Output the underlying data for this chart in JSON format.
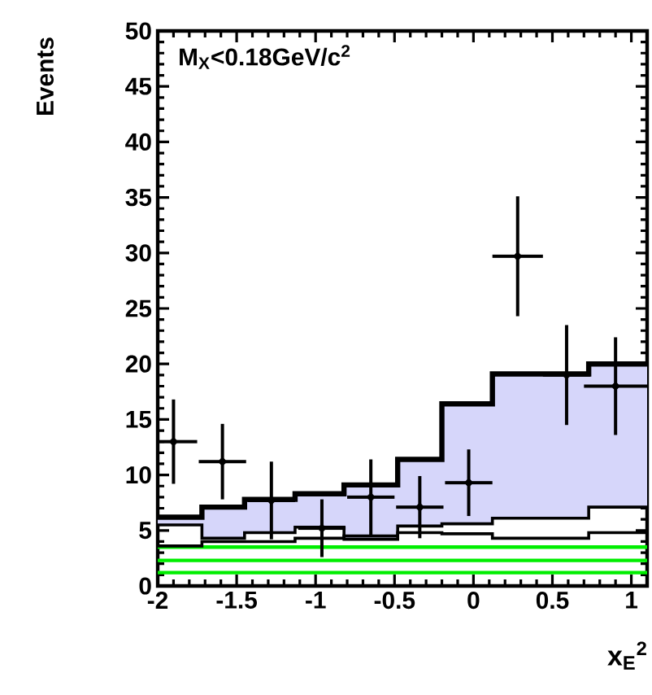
{
  "chart_data": {
    "type": "step",
    "ylabel": "Events",
    "xlabel": "x$_{E}$$^{2}$",
    "annotations": [
      "M$_{X}$<0.18GeV/c$^{2}$"
    ],
    "xlim": [
      -2,
      1.1
    ],
    "xticks": [
      -2,
      -1.5,
      -1,
      -0.5,
      0,
      0.5,
      1
    ],
    "ylim": [
      0,
      50
    ],
    "yticks": [
      0,
      5,
      10,
      15,
      20,
      25,
      30,
      35,
      40,
      45,
      50
    ],
    "grid": false,
    "ref_lines": [
      {
        "axis": "y",
        "value": 3.5,
        "color": "#00ee00"
      },
      {
        "axis": "y",
        "value": 2.3,
        "color": "#00ee00"
      },
      {
        "axis": "y",
        "value": 1.2,
        "color": "#00ee00"
      }
    ],
    "series": [
      {
        "color": "#000000",
        "x": [
          -2,
          -1.72,
          -1.45,
          -1.13,
          -0.82,
          -0.48,
          -0.2,
          0.12,
          0.43,
          0.73,
          1.1
        ],
        "values": [
          6.2,
          7.1,
          7.8,
          8.3,
          9.1,
          11.4,
          16.4,
          19.1,
          19.1,
          20,
          20
        ],
        "lower": [
          5.5,
          4.3,
          4.8,
          5.3,
          4.2,
          5.4,
          5.6,
          6.1,
          6.1,
          7.1,
          7.1
        ],
        "upper": [
          6.2,
          7.1,
          7.8,
          8.3,
          9.1,
          11.4,
          16.4,
          19.1,
          19.1,
          20,
          20
        ]
      },
      {
        "color": "#000000",
        "x": [
          -2,
          -1.72,
          -1.45,
          -1.13,
          -0.82,
          -0.48,
          -0.2,
          0.12,
          0.43,
          0.73,
          1.1
        ],
        "values": [
          5.5,
          4.3,
          4.8,
          5.3,
          4.2,
          5.4,
          5.6,
          6.1,
          6.1,
          7.1,
          7.1
        ]
      },
      {
        "color": "#000000",
        "x": [
          -2,
          -1.72,
          -1.45,
          -1.13,
          -0.82,
          -0.48,
          -0.2,
          0.12,
          0.43,
          0.73,
          1.1
        ],
        "values": [
          3.6,
          4.0,
          4.0,
          4.3,
          4.5,
          4.8,
          4.7,
          4.3,
          4.3,
          4.8,
          4.8
        ]
      },
      {
        "type": "scatter",
        "color": "#000000",
        "x": [
          -1.9,
          -1.59,
          -1.28,
          -0.96,
          -0.65,
          -0.34,
          -0.03,
          0.28,
          0.59,
          0.9
        ],
        "values": [
          13,
          11.2,
          7.7,
          5.2,
          8,
          7.1,
          9.3,
          29.7,
          19,
          18
        ],
        "errors": [
          3.8,
          3.4,
          3.5,
          2.6,
          3.4,
          2.8,
          3,
          5.4,
          4.5,
          4.4
        ],
        "xerrors": [
          0.15,
          0.15,
          0.15,
          0.15,
          0.15,
          0.15,
          0.15,
          0.16,
          0.15,
          0.2
        ]
      }
    ]
  }
}
